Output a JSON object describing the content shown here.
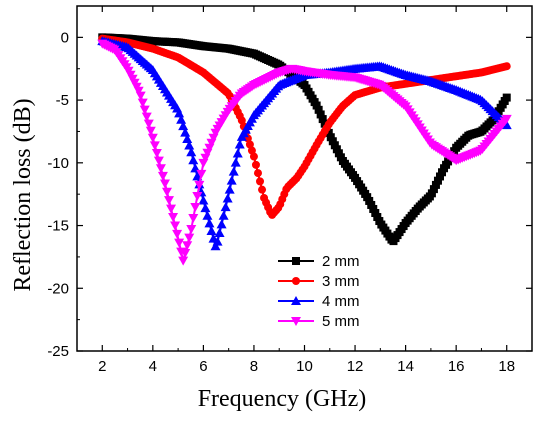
{
  "chart_data": {
    "type": "line",
    "xlabel": "Frequency (GHz)",
    "ylabel": "Reflection loss (dB)",
    "xlim": [
      1,
      19
    ],
    "ylim": [
      -25,
      2.5
    ],
    "x_ticks": [
      2,
      4,
      6,
      8,
      10,
      12,
      14,
      16,
      18
    ],
    "y_ticks": [
      0,
      -5,
      -10,
      -15,
      -20,
      -25
    ],
    "legend_position": "lower-right",
    "series": [
      {
        "name": "2 mm",
        "color": "#000000",
        "marker": "square",
        "points": [
          [
            2,
            0
          ],
          [
            3,
            -0.1
          ],
          [
            4,
            -0.3
          ],
          [
            5,
            -0.4
          ],
          [
            6,
            -0.7
          ],
          [
            7,
            -0.9
          ],
          [
            8,
            -1.3
          ],
          [
            9,
            -2.2
          ],
          [
            10,
            -3.8
          ],
          [
            10.5,
            -5.5
          ],
          [
            11,
            -7.8
          ],
          [
            11.5,
            -9.8
          ],
          [
            12,
            -11.2
          ],
          [
            12.5,
            -12.8
          ],
          [
            13,
            -14.8
          ],
          [
            13.5,
            -16.3
          ],
          [
            14,
            -14.8
          ],
          [
            14.5,
            -13.6
          ],
          [
            15,
            -12.6
          ],
          [
            15.5,
            -10.5
          ],
          [
            16,
            -8.8
          ],
          [
            16.5,
            -7.8
          ],
          [
            17,
            -7.5
          ],
          [
            17.5,
            -6.5
          ],
          [
            18,
            -4.8
          ]
        ]
      },
      {
        "name": "3 mm",
        "color": "#ff0000",
        "marker": "circle",
        "points": [
          [
            2,
            -0.1
          ],
          [
            3,
            -0.4
          ],
          [
            4,
            -0.9
          ],
          [
            5,
            -1.6
          ],
          [
            6,
            -2.8
          ],
          [
            7,
            -4.5
          ],
          [
            7.5,
            -6.5
          ],
          [
            8,
            -9.5
          ],
          [
            8.4,
            -12.8
          ],
          [
            8.7,
            -14.2
          ],
          [
            9,
            -13.5
          ],
          [
            9.3,
            -12
          ],
          [
            9.7,
            -11.2
          ],
          [
            10,
            -10.3
          ],
          [
            10.5,
            -8.5
          ],
          [
            11,
            -6.8
          ],
          [
            11.5,
            -5.5
          ],
          [
            12,
            -4.6
          ],
          [
            13,
            -4
          ],
          [
            14,
            -3.7
          ],
          [
            15,
            -3.4
          ],
          [
            16,
            -3.1
          ],
          [
            17,
            -2.8
          ],
          [
            18,
            -2.3
          ]
        ]
      },
      {
        "name": "4 mm",
        "color": "#0000ff",
        "marker": "triangle-up",
        "points": [
          [
            2,
            -0.3
          ],
          [
            3,
            -0.8
          ],
          [
            4,
            -2.6
          ],
          [
            5,
            -5.8
          ],
          [
            5.5,
            -9
          ],
          [
            6,
            -13
          ],
          [
            6.5,
            -16.8
          ],
          [
            7,
            -12.5
          ],
          [
            7.5,
            -8
          ],
          [
            8,
            -6.2
          ],
          [
            8.5,
            -5
          ],
          [
            9,
            -3.8
          ],
          [
            10,
            -3
          ],
          [
            11,
            -2.8
          ],
          [
            12,
            -2.5
          ],
          [
            13,
            -2.3
          ],
          [
            14,
            -3
          ],
          [
            15,
            -3.5
          ],
          [
            16,
            -4.2
          ],
          [
            17,
            -5
          ],
          [
            18,
            -7
          ]
        ]
      },
      {
        "name": "5 mm",
        "color": "#ff00ff",
        "marker": "triangle-down",
        "points": [
          [
            2,
            -0.5
          ],
          [
            2.5,
            -1
          ],
          [
            3,
            -2.5
          ],
          [
            3.5,
            -4.5
          ],
          [
            4,
            -8
          ],
          [
            4.5,
            -11.8
          ],
          [
            5,
            -16
          ],
          [
            5.2,
            -17.8
          ],
          [
            5.5,
            -15.5
          ],
          [
            6,
            -10
          ],
          [
            6.5,
            -7.5
          ],
          [
            7,
            -5.8
          ],
          [
            7.5,
            -4.5
          ],
          [
            8,
            -3.8
          ],
          [
            9,
            -2.8
          ],
          [
            9.5,
            -2.5
          ],
          [
            10,
            -2.7
          ],
          [
            11,
            -3
          ],
          [
            12,
            -3.2
          ],
          [
            13,
            -3.8
          ],
          [
            14,
            -5.5
          ],
          [
            15,
            -8.5
          ],
          [
            16,
            -9.8
          ],
          [
            17,
            -9
          ],
          [
            18,
            -6.5
          ]
        ]
      }
    ]
  }
}
